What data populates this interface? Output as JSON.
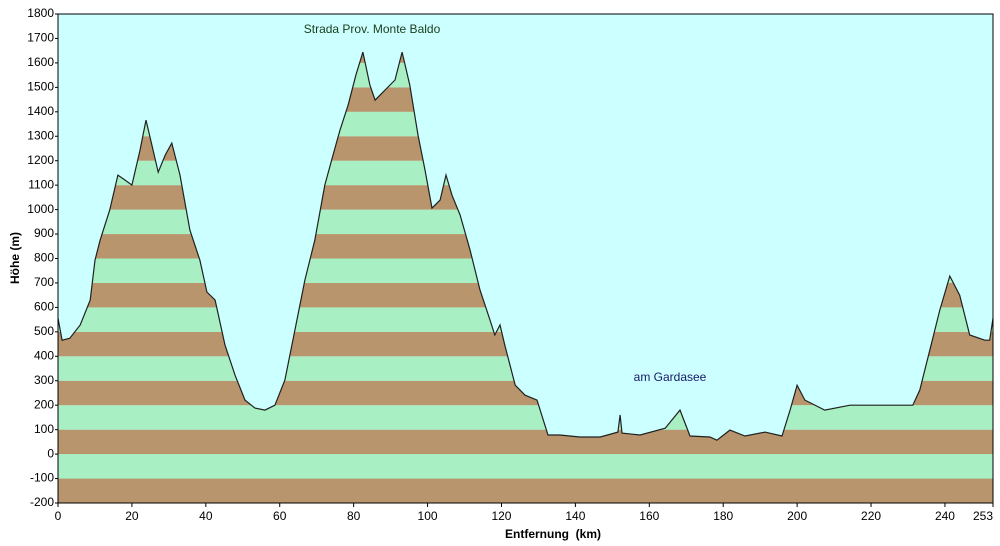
{
  "chart_data": {
    "type": "area",
    "annotations": [
      "Strada Prov. Monte Baldo",
      "am Gardasee"
    ],
    "annotation_colors": [
      "#1a3d1a",
      "#1a1a66"
    ],
    "x_label": "Entfernung  (km)",
    "y_label": "Höhe (m)",
    "x": [
      0,
      1.1,
      3.2,
      6,
      8.7,
      10,
      11.4,
      14,
      16.2,
      18.1,
      20,
      22.2,
      23.8,
      25.4,
      27.1,
      29,
      30.8,
      33,
      35.7,
      38.4,
      40.3,
      42.5,
      45.2,
      47.9,
      50.6,
      53.3,
      56,
      58.7,
      61.4,
      64.1,
      66.8,
      69.5,
      72.2,
      74.4,
      76.3,
      78.5,
      80.6,
      82.5,
      84.4,
      85.8,
      88.5,
      91.2,
      93.1,
      95.2,
      97.4,
      99.3,
      101.2,
      103.4,
      105,
      106.6,
      108.8,
      111.5,
      114.2,
      116.9,
      118.2,
      119.6,
      120.9,
      123.7,
      126.4,
      129.6,
      132.6,
      135.8,
      141.2,
      146.7,
      151.5,
      152.1,
      152.6,
      157.5,
      164.3,
      168.3,
      171,
      176.4,
      178.3,
      181.8,
      185.9,
      191.3,
      195.9,
      198.1,
      200,
      202.1,
      207.5,
      214.3,
      222.4,
      231.3,
      233.2,
      235.9,
      238.6,
      241.3,
      244,
      246.7,
      250.8,
      252.1,
      253
    ],
    "series": [
      {
        "name": "Höhe",
        "color": "#202020",
        "values": [
          556,
          466,
          474,
          528,
          630,
          793,
          875,
          998,
          1141,
          1121,
          1100,
          1243,
          1366,
          1264,
          1153,
          1223,
          1272,
          1141,
          916,
          793,
          663,
          630,
          446,
          323,
          221,
          188,
          180,
          200,
          303,
          507,
          712,
          875,
          1100,
          1223,
          1325,
          1427,
          1550,
          1644,
          1509,
          1448,
          1489,
          1530,
          1644,
          1509,
          1305,
          1162,
          1006,
          1039,
          1141,
          1059,
          978,
          834,
          671,
          548,
          487,
          528,
          446,
          282,
          241,
          221,
          78,
          78,
          70,
          70,
          90,
          160,
          86,
          78,
          106,
          180,
          74,
          70,
          57,
          98,
          74,
          90,
          74,
          180,
          282,
          221,
          180,
          200,
          200,
          200,
          262,
          425,
          589,
          728,
          650,
          487,
          466,
          466,
          556
        ]
      }
    ],
    "band_colors": [
      "#b8956c",
      "#a8f0c4"
    ],
    "background": "#ccffff",
    "xlim": [
      0,
      253
    ],
    "xticks": [
      0,
      20,
      40,
      60,
      80,
      100,
      120,
      140,
      160,
      180,
      200,
      220,
      240,
      253
    ],
    "ylim": [
      -200,
      1800
    ],
    "yticks": [
      -200,
      -100,
      0,
      100,
      200,
      300,
      400,
      500,
      600,
      700,
      800,
      900,
      1000,
      1100,
      1200,
      1300,
      1400,
      1500,
      1600,
      1700,
      1800
    ],
    "grid": true
  }
}
